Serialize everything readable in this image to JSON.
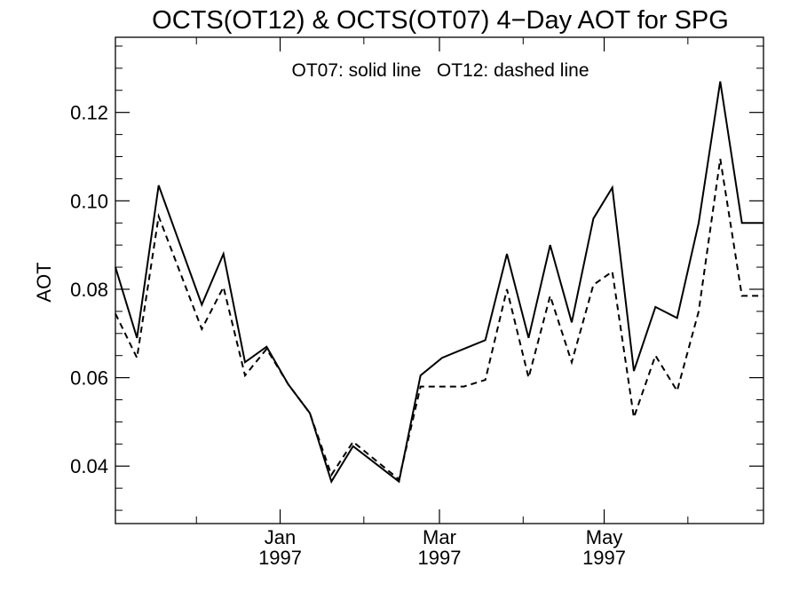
{
  "chart_data": {
    "type": "line",
    "title": "OCTS(OT12) & OCTS(OT07) 4−Day AOT for SPG",
    "annotation": "OT07: solid line   OT12: dashed line",
    "xlabel": "",
    "ylabel": "AOT",
    "ylim": [
      0.027,
      0.137
    ],
    "xlim": [
      "1996-11-01",
      "1997-06-29"
    ],
    "y_ticks": [
      "0.04",
      "0.06",
      "0.08",
      "0.10",
      "0.12"
    ],
    "x_ticks": [
      {
        "date": "1997-01-01",
        "month": "Jan",
        "year": "1997"
      },
      {
        "date": "1997-03-01",
        "month": "Mar",
        "year": "1997"
      },
      {
        "date": "1997-05-01",
        "month": "May",
        "year": "1997"
      }
    ],
    "grid": false,
    "series": [
      {
        "name": "OT07",
        "style": "solid",
        "color": "#000000",
        "x": [
          "1996-11-01",
          "1996-11-09",
          "1996-11-17",
          "1996-12-03",
          "1996-12-11",
          "1996-12-19",
          "1996-12-27",
          "1997-01-04",
          "1997-01-12",
          "1997-01-20",
          "1997-01-28",
          "1997-02-14",
          "1997-02-22",
          "1997-03-02",
          "1997-03-10",
          "1997-03-18",
          "1997-03-26",
          "1997-04-03",
          "1997-04-11",
          "1997-04-19",
          "1997-04-27",
          "1997-05-04",
          "1997-05-12",
          "1997-05-20",
          "1997-05-28",
          "1997-06-05",
          "1997-06-13",
          "1997-06-21",
          "1997-06-29"
        ],
        "y": [
          0.085,
          0.069,
          0.1035,
          0.0765,
          0.088,
          0.0635,
          0.067,
          0.0585,
          0.052,
          0.0365,
          0.0445,
          0.0365,
          0.0605,
          0.0645,
          0.0665,
          0.0685,
          0.088,
          0.069,
          0.09,
          0.0725,
          0.096,
          0.103,
          0.0615,
          0.076,
          0.0735,
          0.095,
          0.127,
          0.095,
          0.095
        ]
      },
      {
        "name": "OT12",
        "style": "dashed",
        "color": "#000000",
        "x": [
          "1996-11-01",
          "1996-11-09",
          "1996-11-17",
          "1996-12-03",
          "1996-12-11",
          "1996-12-19",
          "1996-12-27",
          "1997-01-04",
          "1997-01-12",
          "1997-01-20",
          "1997-01-28",
          "1997-02-14",
          "1997-02-22",
          "1997-03-02",
          "1997-03-10",
          "1997-03-18",
          "1997-03-26",
          "1997-04-03",
          "1997-04-11",
          "1997-04-19",
          "1997-04-27",
          "1997-05-04",
          "1997-05-12",
          "1997-05-20",
          "1997-05-28",
          "1997-06-05",
          "1997-06-13",
          "1997-06-21",
          "1997-06-29"
        ],
        "y": [
          0.0745,
          0.0645,
          0.0965,
          0.071,
          0.0805,
          0.0605,
          0.0665,
          0.0585,
          0.052,
          0.038,
          0.0455,
          0.037,
          0.058,
          0.058,
          0.058,
          0.0595,
          0.08,
          0.06,
          0.0785,
          0.0635,
          0.081,
          0.084,
          0.051,
          0.065,
          0.057,
          0.075,
          0.1095,
          0.0785,
          0.0785
        ]
      }
    ]
  }
}
